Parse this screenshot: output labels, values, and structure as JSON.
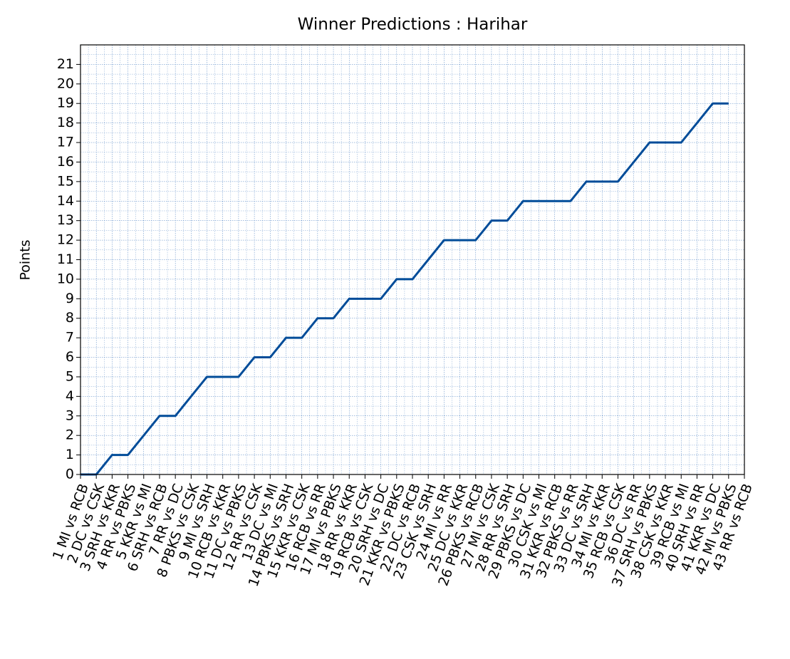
{
  "chart_data": {
    "type": "line",
    "title": "Winner Predictions : Harihar",
    "y_label": "Points",
    "categories": [
      "1 MI vs RCB",
      "2 DC vs CSK",
      "3 SRH vs KKR",
      "4 RR vs PBKS",
      "5 KKR vs MI",
      "6 SRH vs RCB",
      "7 RR vs DC",
      "8 PBKS vs CSK",
      "9 MI vs SRH",
      "10 RCB vs KKR",
      "11 DC vs PBKS",
      "12 RR vs CSK",
      "13 DC vs MI",
      "14 PBKS vs SRH",
      "15 KKR vs CSK",
      "16 RCB vs RR",
      "17 MI vs PBKS",
      "18 RR vs KKR",
      "19 RCB vs CSK",
      "20 SRH vs DC",
      "21 KKR vs PBKS",
      "22 DC vs RCB",
      "23 CSK vs SRH",
      "24 MI vs RR",
      "25 DC vs KKR",
      "26 PBKS vs RCB",
      "27 MI vs CSK",
      "28 RR vs SRH",
      "29 PBKS vs DC",
      "30 CSK vs MI",
      "31 KKR vs RCB",
      "32 PBKS vs RR",
      "33 DC vs SRH",
      "34 MI vs KKR",
      "35 RCB vs CSK",
      "36 DC vs RR",
      "37 SRH vs PBKS",
      "38 CSK vs KKR",
      "39 RCB vs MI",
      "40 SRH vs RR",
      "41 KKR vs DC",
      "42 MI vs PBKS",
      "43 RR vs RCB"
    ],
    "series": [
      {
        "name": "Harihar",
        "color": "#004c99",
        "values": [
          0,
          0,
          1,
          1,
          2,
          3,
          3,
          4,
          5,
          5,
          5,
          6,
          6,
          7,
          7,
          8,
          8,
          9,
          9,
          9,
          10,
          10,
          11,
          12,
          12,
          12,
          13,
          13,
          14,
          14,
          14,
          14,
          15,
          15,
          15,
          16,
          17,
          17,
          17,
          18,
          19,
          19,
          null
        ]
      }
    ],
    "ylim": [
      0,
      22
    ],
    "yticks": [
      0,
      1,
      2,
      3,
      4,
      5,
      6,
      7,
      8,
      9,
      10,
      11,
      12,
      13,
      14,
      15,
      16,
      17,
      18,
      19,
      20,
      21
    ],
    "grid": true,
    "grid_color": "#4a7fc0"
  }
}
